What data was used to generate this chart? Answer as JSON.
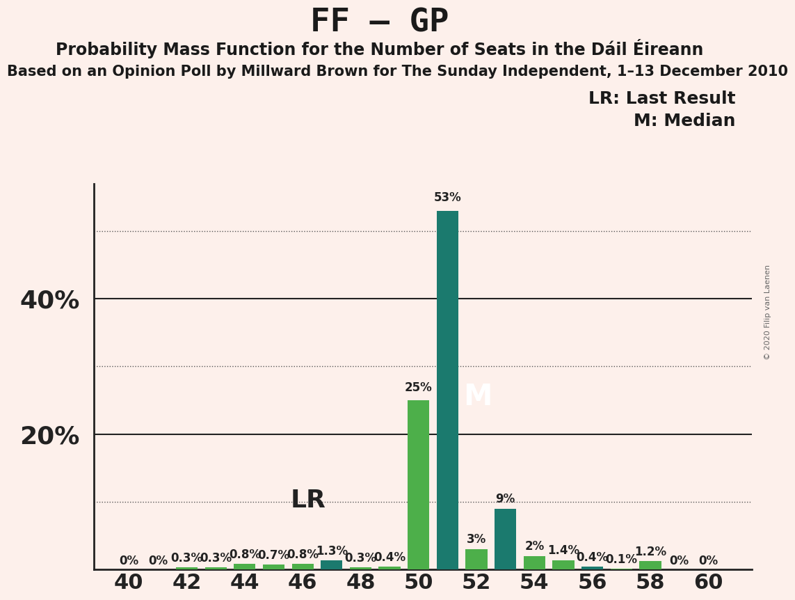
{
  "title": "FF – GP",
  "subtitle1": "Probability Mass Function for the Number of Seats in the Dáil Éireann",
  "subtitle2": "Based on an Opinion Poll by Millward Brown for The Sunday Independent, 1–13 December 2010",
  "copyright": "© 2020 Filip van Laenen",
  "legend_lr": "LR: Last Result",
  "legend_m": "M: Median",
  "background_color": "#fdf0eb",
  "bar_color_green": "#4daf4a",
  "bar_color_teal": "#1b7a6e",
  "seats": [
    40,
    41,
    42,
    43,
    44,
    45,
    46,
    47,
    48,
    49,
    50,
    51,
    52,
    53,
    54,
    55,
    56,
    57,
    58,
    59,
    60
  ],
  "values": [
    0.0,
    0.0,
    0.3,
    0.3,
    0.8,
    0.7,
    0.8,
    1.3,
    0.3,
    0.4,
    25.0,
    53.0,
    3.0,
    9.0,
    2.0,
    1.4,
    0.4,
    0.1,
    1.2,
    0.0,
    0.0
  ],
  "bar_types": [
    "green",
    "green",
    "green",
    "green",
    "green",
    "green",
    "green",
    "teal",
    "green",
    "green",
    "green",
    "teal",
    "green",
    "teal",
    "green",
    "green",
    "teal",
    "green",
    "green",
    "green",
    "green"
  ],
  "labels": [
    "0%",
    "0%",
    "0.3%",
    "0.3%",
    "0.8%",
    "0.7%",
    "0.8%",
    "1.3%",
    "0.3%",
    "0.4%",
    "25%",
    "53%",
    "3%",
    "9%",
    "2%",
    "1.4%",
    "0.4%",
    "0.1%",
    "1.2%",
    "0%",
    "0%"
  ],
  "lr_seat": 47,
  "median_seat": 51,
  "ylim": [
    0,
    57
  ],
  "solid_lines": [
    20,
    40
  ],
  "dotted_lines": [
    10,
    30,
    50
  ],
  "ytick_labels_shown": {
    "20": "20%",
    "40": "40%"
  },
  "axis_line_color": "#222222",
  "grid_color_solid": "#222222",
  "grid_color_dotted": "#555555",
  "title_fontsize": 34,
  "subtitle_fontsize": 17,
  "subtitle2_fontsize": 15,
  "tick_fontsize": 22,
  "ytick_fontsize": 26,
  "legend_fontsize": 18,
  "bar_label_fontsize": 12,
  "lr_label_fontsize": 26,
  "m_label_fontsize": 30
}
